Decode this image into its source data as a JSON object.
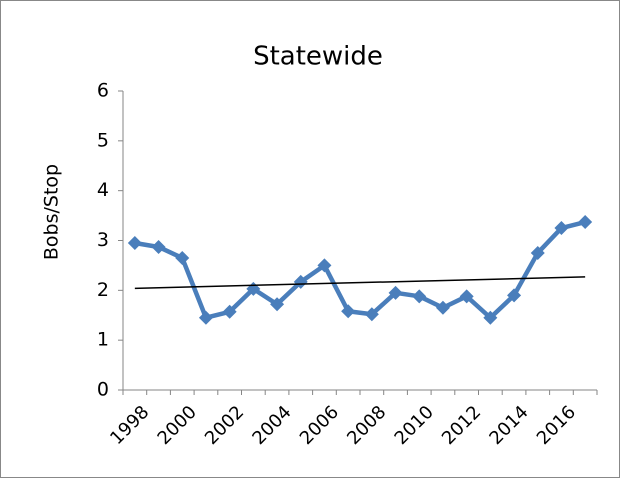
{
  "chart_data": {
    "type": "line",
    "title": "Statewide",
    "y_label": "Bobs/Stop",
    "categories": [
      "1998",
      null,
      "2000",
      null,
      "2002",
      null,
      "2004",
      null,
      "2006",
      null,
      "2008",
      null,
      "2010",
      null,
      "2012",
      null,
      "2014",
      null,
      "2016",
      null
    ],
    "series": [
      {
        "name": "Bobs/Stop",
        "color": "#4a7ebb",
        "values": [
          2.95,
          2.87,
          2.65,
          1.45,
          1.57,
          2.03,
          1.72,
          2.17,
          2.5,
          1.58,
          1.52,
          1.95,
          1.88,
          1.65,
          1.88,
          1.45,
          1.9,
          2.75,
          3.25,
          3.37
        ]
      }
    ],
    "trendline": {
      "color": "#000000",
      "values": [
        2.04,
        2.27
      ]
    },
    "ylim": [
      0,
      6
    ],
    "yticks": [
      0,
      1,
      2,
      3,
      4,
      5,
      6
    ],
    "grid": false
  }
}
